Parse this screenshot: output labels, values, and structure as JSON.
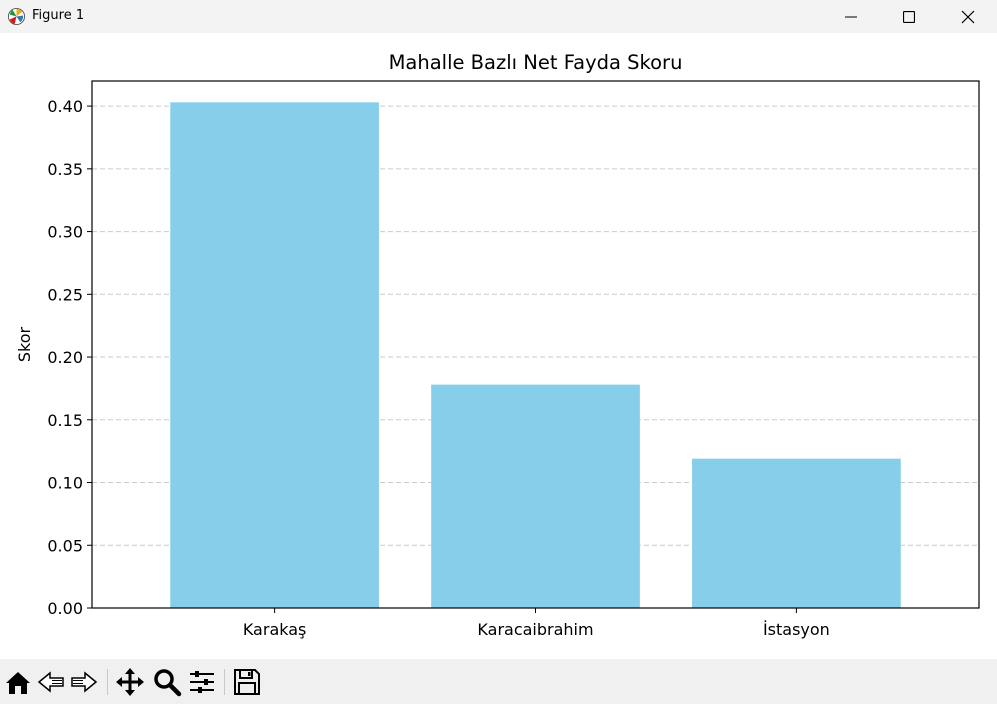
{
  "window": {
    "title": "Figure 1",
    "icons": [
      "matplotlib-logo-icon",
      "minimize-icon",
      "maximize-icon",
      "close-icon"
    ]
  },
  "colors": {
    "bar": "#87ceeb",
    "grid": "#cccccc",
    "axis": "#000000",
    "toolbar_bg": "#f0f0f0",
    "titlebar_bg": "#f3f3f3"
  },
  "toolbar": {
    "buttons": [
      "home-icon",
      "back-icon",
      "forward-icon",
      "pan-icon",
      "zoom-icon",
      "configure-subplots-icon",
      "save-icon"
    ]
  },
  "chart_data": {
    "type": "bar",
    "title": "Mahalle Bazlı Net Fayda Skoru",
    "xlabel": "",
    "ylabel": "Skor",
    "categories": [
      "Karakaş",
      "Karacaibrahim",
      "İstasyon"
    ],
    "values": [
      0.403,
      0.178,
      0.119
    ],
    "ylim": [
      0,
      0.42
    ],
    "yticks": [
      "0.00",
      "0.05",
      "0.10",
      "0.15",
      "0.20",
      "0.25",
      "0.30",
      "0.35",
      "0.40"
    ],
    "grid": "y-dashed",
    "legend": "none"
  }
}
